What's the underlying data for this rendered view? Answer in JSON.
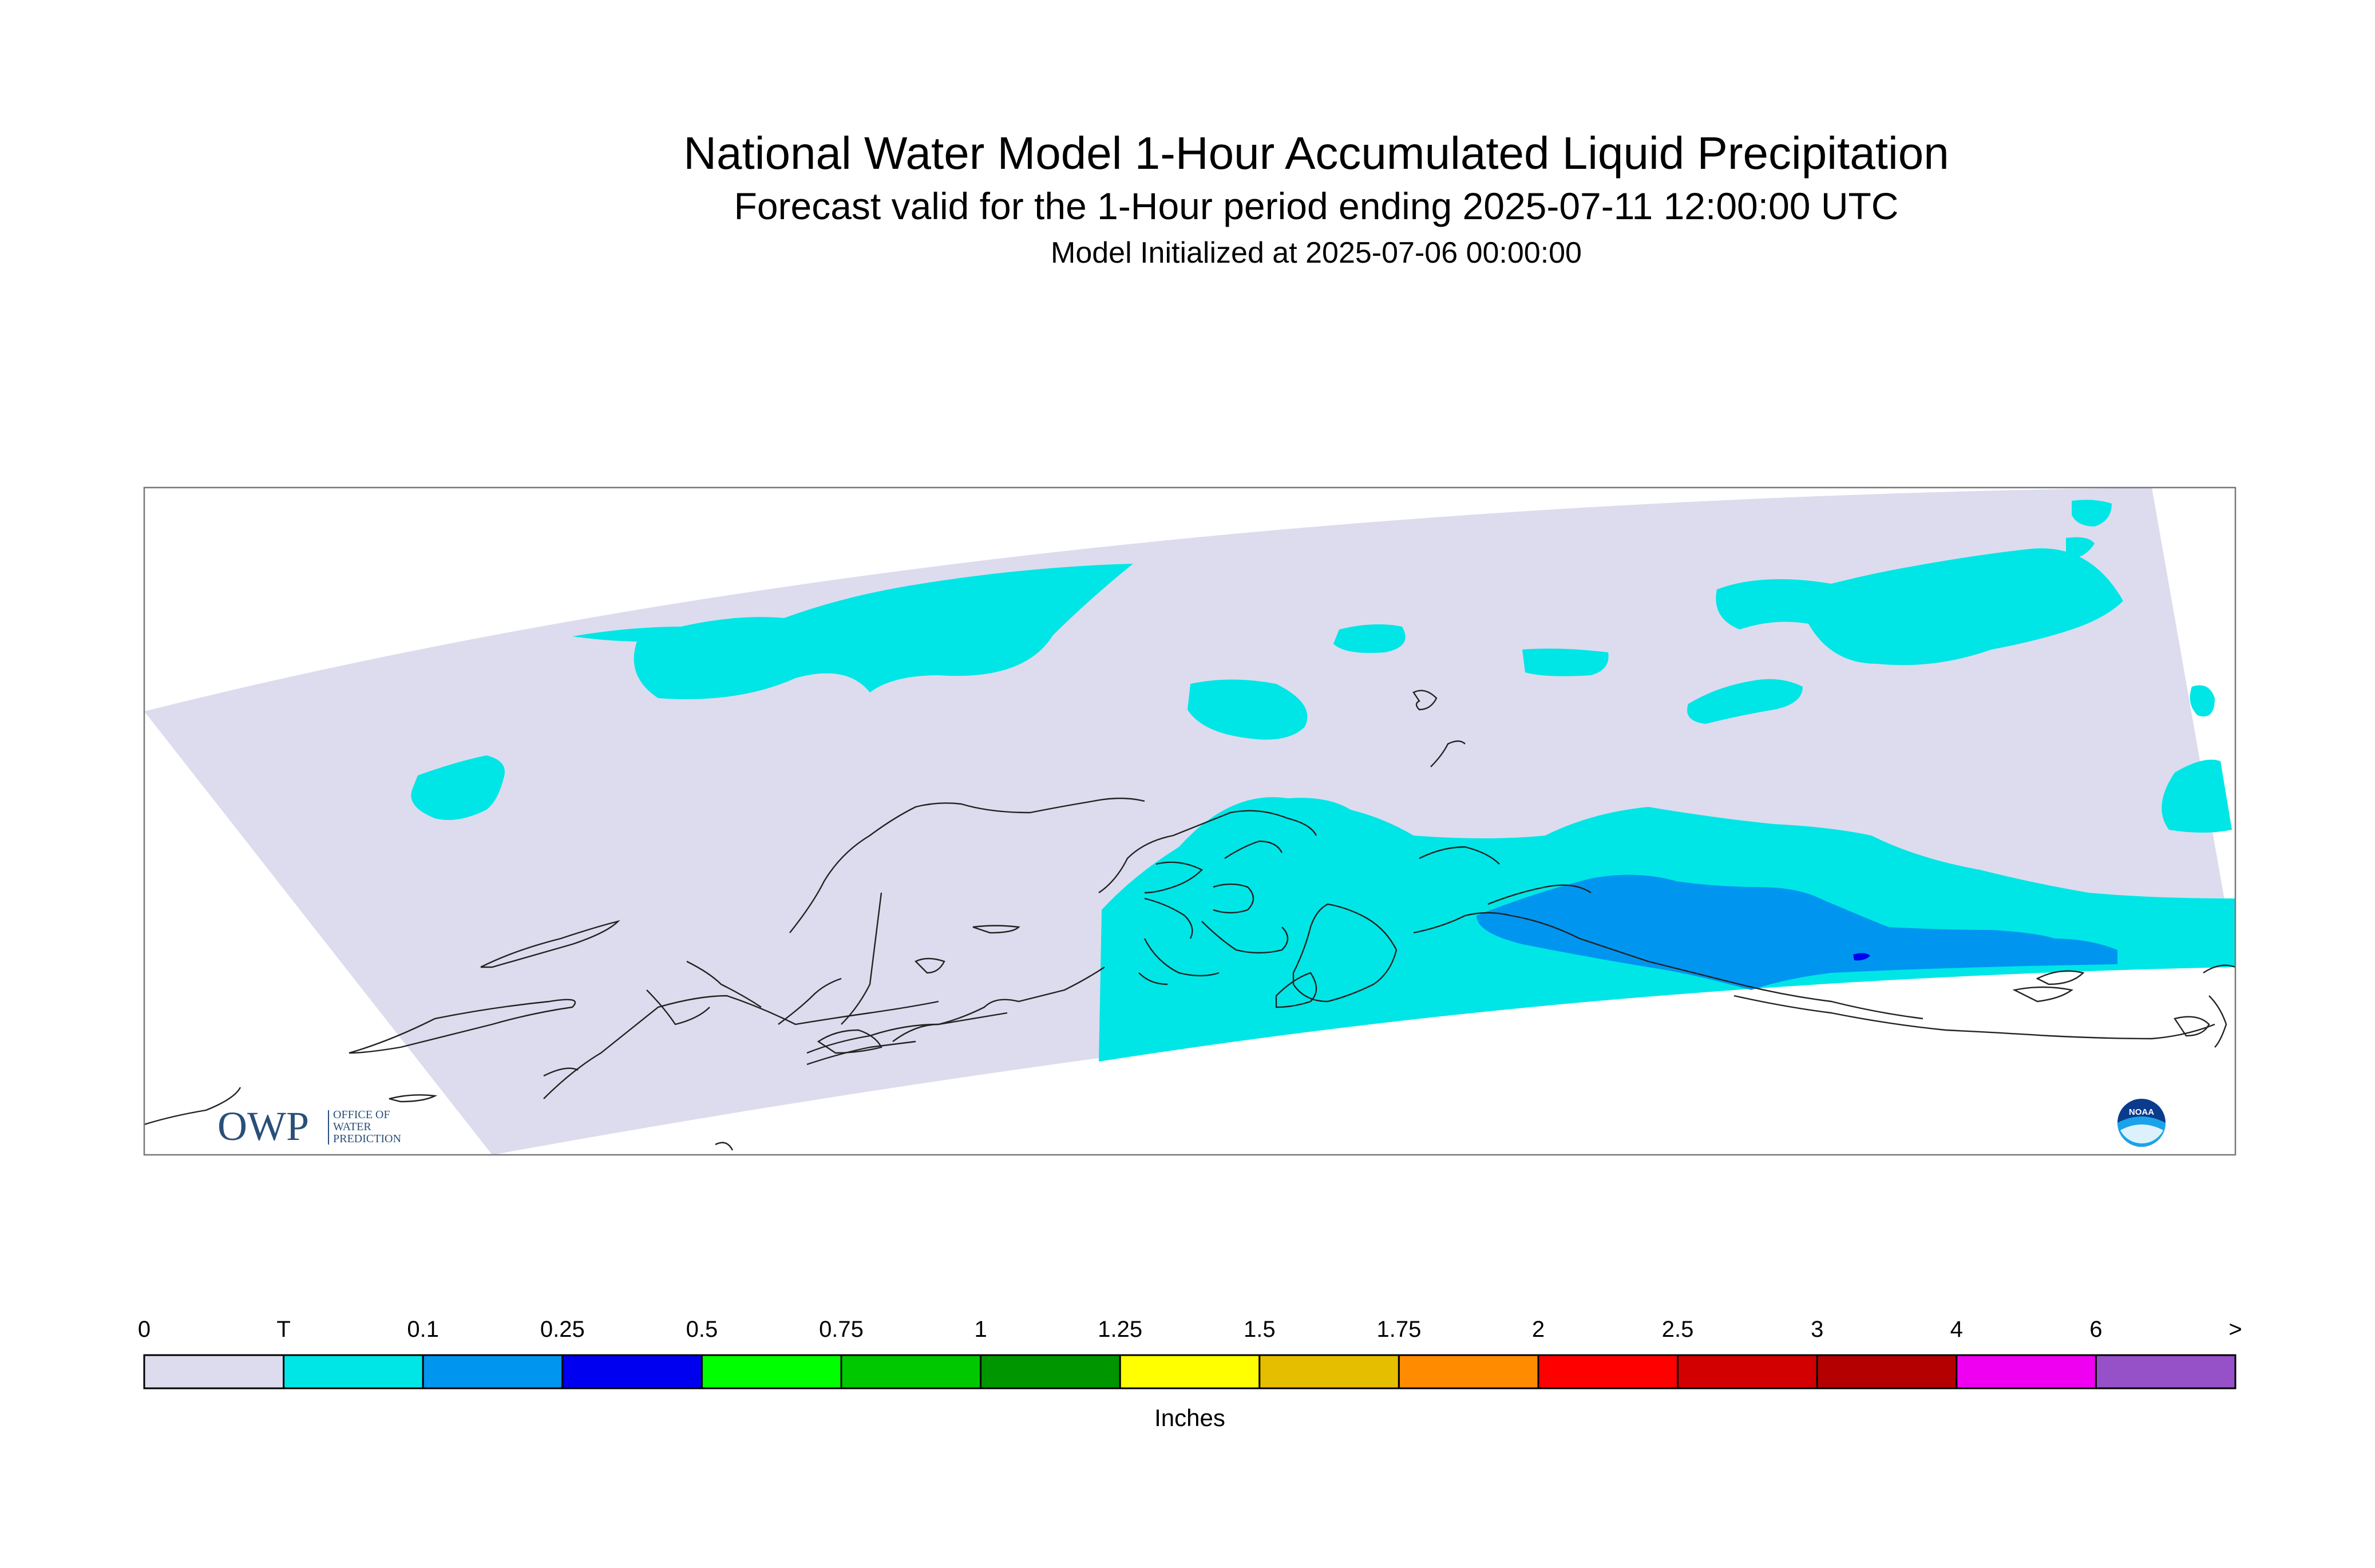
{
  "titles": {
    "main": "National Water Model 1-Hour Accumulated Liquid Precipitation",
    "forecast": "Forecast valid for the 1-Hour period ending 2025-07-11 12:00:00 UTC",
    "init": "Model Initialized at 2025-07-06 00:00:00"
  },
  "logos": {
    "owp_mark": "OWP",
    "owp_text": [
      "OFFICE OF",
      "WATER",
      "PREDICTION"
    ],
    "noaa": "NOAA"
  },
  "legend": {
    "unit": "Inches",
    "labels": [
      "0",
      "T",
      "0.1",
      "0.25",
      "0.5",
      "0.75",
      "1",
      "1.25",
      "1.5",
      "1.75",
      "2",
      "2.5",
      "3",
      "4",
      "6",
      ">"
    ],
    "colors": [
      "#dcdcee",
      "#00e6e6",
      "#0096f0",
      "#0000f0",
      "#00ff00",
      "#00c800",
      "#009600",
      "#ffff00",
      "#e6be00",
      "#ff8c00",
      "#ff0000",
      "#d20000",
      "#b40000",
      "#f000f0",
      "#9650c8"
    ]
  },
  "map_colors": {
    "none": "#dcdcee",
    "trace": "#00e6e6",
    "light": "#0096f0",
    "moderate": "#0000f0",
    "coast": "#222222"
  }
}
